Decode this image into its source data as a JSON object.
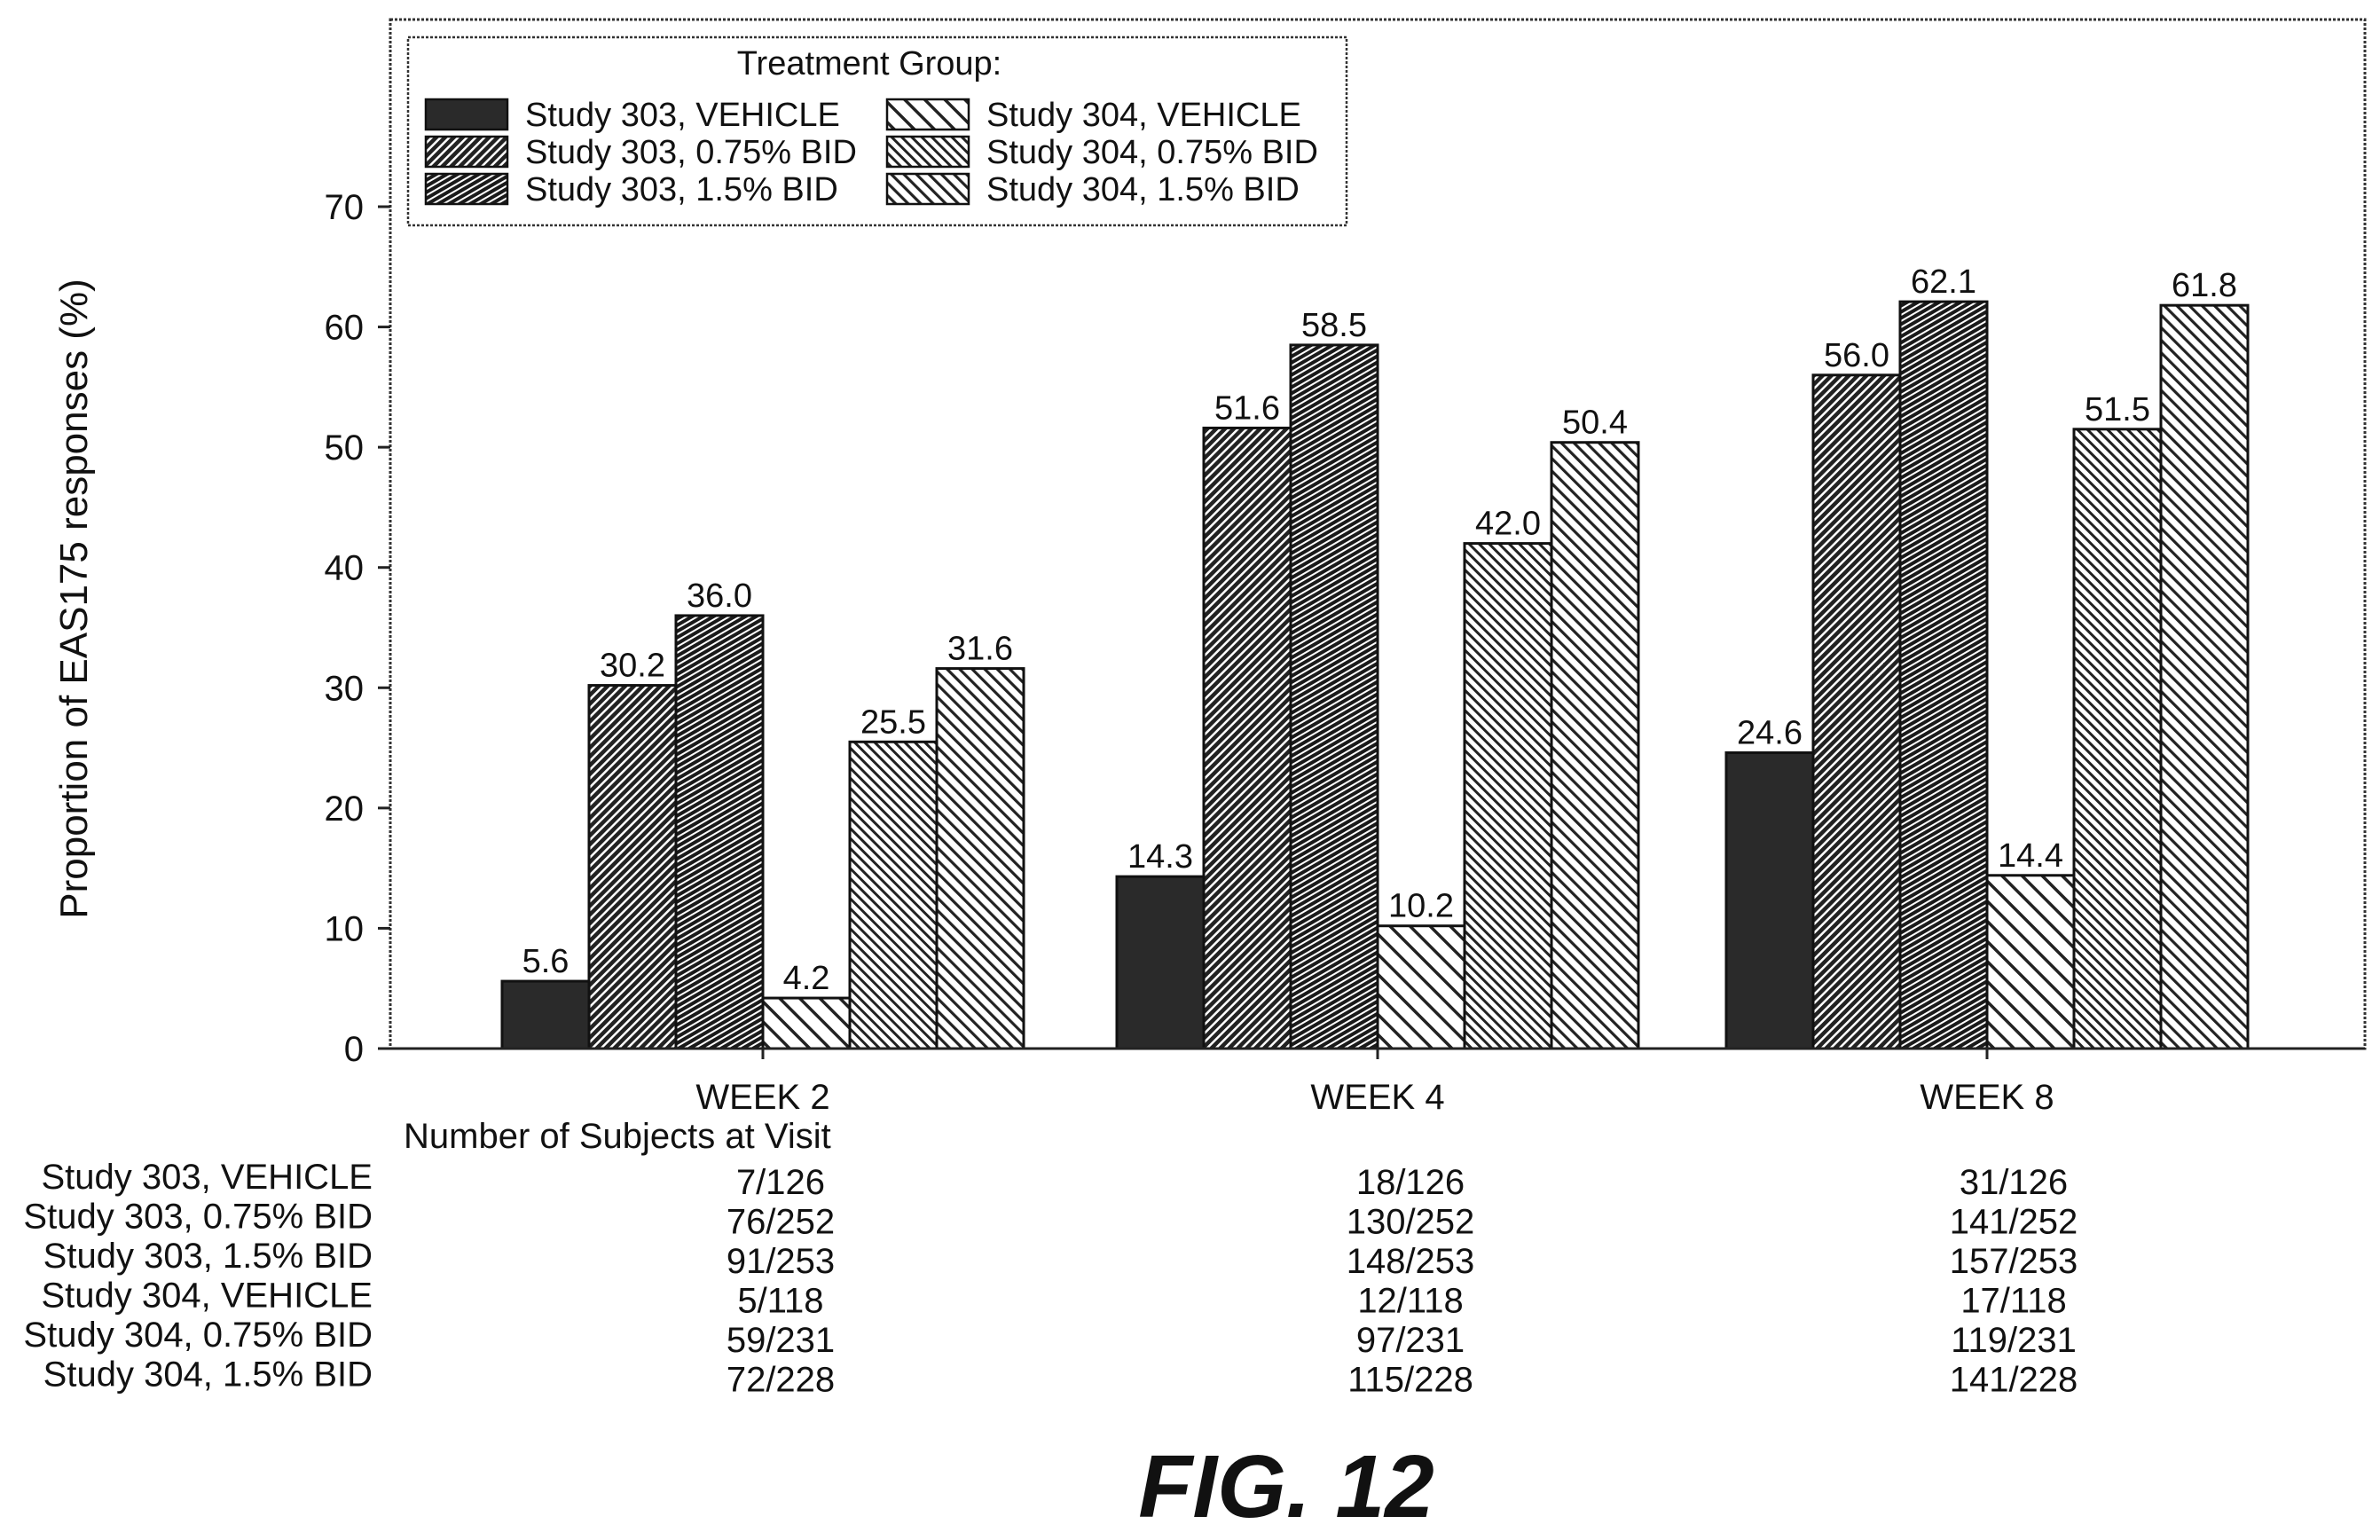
{
  "figure_label": "FIG. 12",
  "chart_data": {
    "type": "bar",
    "title": "",
    "xlabel": "",
    "ylabel": "Proportion of EAS175 responses (%)",
    "ylim": [
      0,
      70
    ],
    "yticks": [
      0,
      10,
      20,
      30,
      40,
      50,
      60,
      70
    ],
    "categories": [
      "WEEK 2",
      "WEEK 4",
      "WEEK 8"
    ],
    "legend_title": "Treatment Group:",
    "legend_position": "top-left",
    "series": [
      {
        "name": "Study 303, VEHICLE",
        "values": [
          5.6,
          14.3,
          24.6
        ],
        "labels": [
          "5.6",
          "14.3",
          "24.6"
        ],
        "pattern": "solid-dark"
      },
      {
        "name": "Study 303, 0.75% BID",
        "values": [
          30.2,
          51.6,
          56.0
        ],
        "labels": [
          "30.2",
          "51.6",
          "56.0"
        ],
        "pattern": "dense-diagonal-right"
      },
      {
        "name": "Study 303, 1.5% BID",
        "values": [
          36.0,
          58.5,
          62.1
        ],
        "labels": [
          "36.0",
          "58.5",
          "62.1"
        ],
        "pattern": "dense-vertical-lines"
      },
      {
        "name": "Study 304, VEHICLE",
        "values": [
          4.2,
          10.2,
          14.4
        ],
        "labels": [
          "4.2",
          "10.2",
          "14.4"
        ],
        "pattern": "sparse-diagonal-left"
      },
      {
        "name": "Study 304, 0.75% BID",
        "values": [
          25.5,
          42.0,
          51.5
        ],
        "labels": [
          "25.5",
          "42.0",
          "51.5"
        ],
        "pattern": "medium-diagonal-left"
      },
      {
        "name": "Study 304, 1.5% BID",
        "values": [
          31.6,
          50.4,
          61.8
        ],
        "labels": [
          "31.6",
          "50.4",
          "61.8"
        ],
        "pattern": "dense-diagonal-left"
      }
    ],
    "subjects_table": {
      "heading": "Number of Subjects at Visit",
      "rows": [
        {
          "label": "Study 303, VEHICLE",
          "values": [
            "7/126",
            "18/126",
            "31/126"
          ]
        },
        {
          "label": "Study 303, 0.75% BID",
          "values": [
            "76/252",
            "130/252",
            "141/252"
          ]
        },
        {
          "label": "Study 303, 1.5% BID",
          "values": [
            "91/253",
            "148/253",
            "157/253"
          ]
        },
        {
          "label": "Study 304, VEHICLE",
          "values": [
            "5/118",
            "12/118",
            "17/118"
          ]
        },
        {
          "label": "Study 304, 0.75% BID",
          "values": [
            "59/231",
            "97/231",
            "119/231"
          ]
        },
        {
          "label": "Study 304, 1.5% BID",
          "values": [
            "72/228",
            "115/228",
            "141/228"
          ]
        }
      ]
    }
  }
}
